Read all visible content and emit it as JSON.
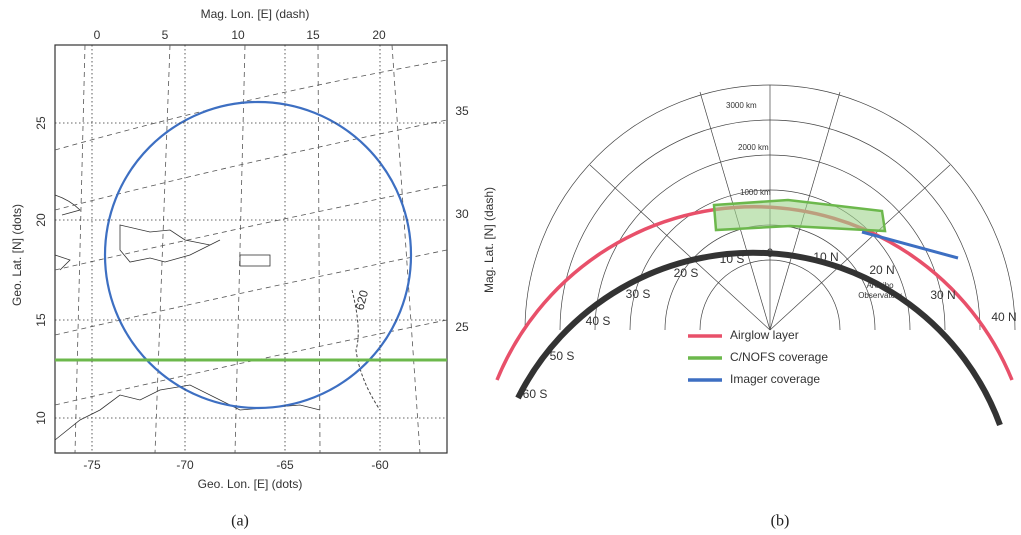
{
  "panel_a": {
    "top_axis_label": "Mag. Lon. [E] (dash)",
    "top_ticks": [
      0,
      5,
      10,
      15,
      20
    ],
    "bottom_axis_label": "Geo. Lon. [E] (dots)",
    "bottom_ticks": [
      -75,
      -70,
      -65,
      -60
    ],
    "left_axis_label": "Geo. Lat. [N] (dots)",
    "left_ticks": [
      25,
      20,
      15,
      10
    ],
    "right_axis_label": "Mag. Lat. [N] (dash)",
    "right_ticks": [
      35,
      30,
      25
    ],
    "contour_label": "620",
    "caption": "(a)"
  },
  "panel_b": {
    "range_labels": [
      "3000 km",
      "2000 km",
      "1000 km"
    ],
    "lat_labels": [
      "60 S",
      "50 S",
      "40 S",
      "30 S",
      "20 S",
      "10 S",
      "0",
      "10 N",
      "20 N",
      "30 N",
      "40 N"
    ],
    "site_label": [
      "Arecibo",
      "Observatory"
    ],
    "legend": [
      {
        "name": "Airglow layer",
        "color": "#e8506a"
      },
      {
        "name": "C/NOFS coverage",
        "color": "#6cb84c"
      },
      {
        "name": "Imager coverage",
        "color": "#3d6fc2"
      }
    ],
    "caption": "(b)"
  }
}
